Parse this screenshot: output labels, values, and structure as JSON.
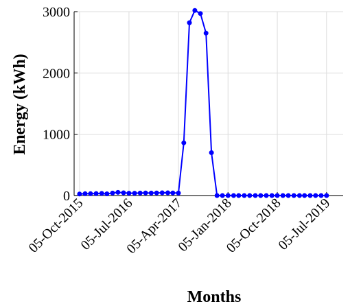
{
  "chart_data": {
    "type": "line",
    "title": "",
    "xlabel": "Months",
    "ylabel": "Energy (kWh)",
    "ylim": [
      0,
      3000
    ],
    "yticks": [
      0,
      1000,
      2000,
      3000
    ],
    "xtick_labels": [
      "05-Oct-2015",
      "05-Jul-2016",
      "05-Apr-2017",
      "05-Jan-2018",
      "05-Oct-2018",
      "05-Jul-2019"
    ],
    "xlim": [
      "2015-09-05",
      "2019-10-05"
    ],
    "grid": true,
    "color": "#0000ff",
    "marker": "circle",
    "x": [
      "2015-10-05",
      "2015-11-05",
      "2015-12-05",
      "2016-01-05",
      "2016-02-05",
      "2016-03-05",
      "2016-04-05",
      "2016-05-05",
      "2016-06-05",
      "2016-07-05",
      "2016-08-05",
      "2016-09-05",
      "2016-10-05",
      "2016-11-05",
      "2016-12-05",
      "2017-01-05",
      "2017-02-05",
      "2017-03-05",
      "2017-04-05",
      "2017-05-05",
      "2017-06-05",
      "2017-07-05",
      "2017-08-05",
      "2017-09-05",
      "2017-10-05",
      "2017-11-05",
      "2017-12-05",
      "2018-01-05",
      "2018-02-05",
      "2018-03-05",
      "2018-04-05",
      "2018-05-05",
      "2018-06-05",
      "2018-07-05",
      "2018-08-05",
      "2018-09-05",
      "2018-10-05",
      "2018-11-05",
      "2018-12-05",
      "2019-01-05",
      "2019-02-05",
      "2019-03-05",
      "2019-04-05",
      "2019-05-05",
      "2019-06-05",
      "2019-07-05"
    ],
    "series": [
      {
        "values": [
          25,
          30,
          30,
          32,
          35,
          28,
          40,
          52,
          45,
          38,
          38,
          40,
          42,
          40,
          42,
          45,
          45,
          42,
          40,
          860,
          2820,
          3020,
          2970,
          2650,
          700,
          0,
          0,
          0,
          0,
          0,
          0,
          0,
          0,
          0,
          0,
          0,
          0,
          0,
          0,
          0,
          0,
          0,
          0,
          0,
          0,
          0
        ]
      }
    ]
  }
}
